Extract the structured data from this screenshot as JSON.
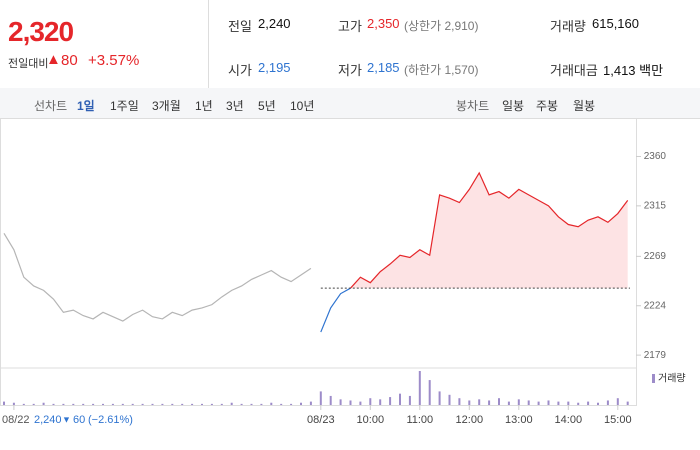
{
  "header": {
    "price": "2,320",
    "change_label": "전일대비",
    "change": "80",
    "change_pct": "+3.57%",
    "stats": [
      [
        "전일",
        "2,240"
      ],
      [
        "고가",
        "2,350"
      ],
      [
        "(상한가 2,910)"
      ],
      [
        "거래량",
        "615,160"
      ],
      [
        "시가",
        "2,195"
      ],
      [
        "저가",
        "2,185"
      ],
      [
        "(하한가 1,570)"
      ],
      [
        "거래대금",
        "1,413 백만"
      ]
    ]
  },
  "tabs": {
    "line_label": "선차트",
    "line_tabs": [
      "1일",
      "1주일",
      "3개월",
      "1년",
      "3년",
      "5년",
      "10년"
    ],
    "candle_label": "봉차트",
    "candle_tabs": [
      "일봉",
      "주봉",
      "월봉"
    ]
  },
  "footer": {
    "date": "08/22",
    "close": "2,240",
    "change": "60",
    "change_pct": "(−2.61%)"
  },
  "chart_data": {
    "type": "line",
    "categories": [
      null,
      "08/22",
      null,
      null,
      null,
      null,
      null,
      null,
      null,
      null,
      null,
      null,
      null,
      null,
      null,
      null,
      null,
      null,
      null,
      null,
      null,
      null,
      null,
      null,
      null,
      null,
      null,
      null,
      null,
      null,
      null,
      null,
      "08/23",
      null,
      null,
      null,
      null,
      "10:00",
      null,
      null,
      null,
      null,
      "11:00",
      null,
      null,
      null,
      null,
      "12:00",
      null,
      null,
      null,
      null,
      "13:00",
      null,
      null,
      null,
      null,
      "14:00",
      null,
      null,
      null,
      null,
      "15:00",
      null
    ],
    "series": [
      {
        "color": "#b5b5b5",
        "values": [
          2290,
          2275,
          2250,
          2242,
          2238,
          2230,
          2218,
          2220,
          2215,
          2212,
          2218,
          2214,
          2210,
          2216,
          2220,
          2214,
          2212,
          2218,
          2215,
          2220,
          2222,
          2225,
          2232,
          2238,
          2242,
          2248,
          2252,
          2256,
          2250,
          2246,
          2252,
          2258,
          null,
          null,
          null,
          null,
          null,
          null,
          null,
          null,
          null,
          null,
          null,
          null,
          null,
          null,
          null,
          null,
          null,
          null,
          null,
          null,
          null,
          null,
          null,
          null,
          null,
          null,
          null,
          null,
          null,
          null,
          null,
          null
        ]
      },
      {
        "color": "#2f74d0",
        "values": [
          null,
          null,
          null,
          null,
          null,
          null,
          null,
          null,
          null,
          null,
          null,
          null,
          null,
          null,
          null,
          null,
          null,
          null,
          null,
          null,
          null,
          null,
          null,
          null,
          null,
          null,
          null,
          null,
          null,
          null,
          null,
          null,
          2200,
          2222,
          2235,
          2240,
          null,
          null,
          null,
          null,
          null,
          null,
          null,
          null,
          null,
          null,
          null,
          null,
          null,
          null,
          null,
          null,
          null,
          null,
          null,
          null,
          null,
          null,
          null,
          null,
          null,
          null,
          null,
          null
        ]
      },
      {
        "color": "#e5262a",
        "fill": "#fde3e4",
        "values": [
          null,
          null,
          null,
          null,
          null,
          null,
          null,
          null,
          null,
          null,
          null,
          null,
          null,
          null,
          null,
          null,
          null,
          null,
          null,
          null,
          null,
          null,
          null,
          null,
          null,
          null,
          null,
          null,
          null,
          null,
          null,
          null,
          null,
          null,
          null,
          2240,
          2250,
          2245,
          2255,
          2262,
          2270,
          2268,
          2275,
          2270,
          2325,
          2322,
          2318,
          2330,
          2345,
          2325,
          2328,
          2322,
          2330,
          2325,
          2320,
          2315,
          2305,
          2298,
          2296,
          2302,
          2305,
          2300,
          2308,
          2320
        ]
      }
    ],
    "volume": {
      "name": "거래량",
      "color": "#9d8cc9",
      "values": [
        3,
        2,
        1,
        1,
        2,
        1,
        1,
        1,
        1,
        1,
        1,
        1,
        1,
        1,
        1,
        1,
        1,
        1,
        1,
        1,
        1,
        1,
        1,
        2,
        1,
        1,
        1,
        2,
        1,
        1,
        2,
        3,
        12,
        8,
        5,
        4,
        3,
        6,
        5,
        7,
        10,
        8,
        30,
        22,
        12,
        9,
        6,
        4,
        5,
        4,
        6,
        3,
        5,
        4,
        3,
        4,
        3,
        3,
        2,
        3,
        2,
        4,
        6,
        3
      ]
    },
    "base": 2240,
    "ylim": [
      2170,
      2375
    ],
    "yticks": [
      2179,
      2224,
      2269,
      2315,
      2360
    ]
  }
}
